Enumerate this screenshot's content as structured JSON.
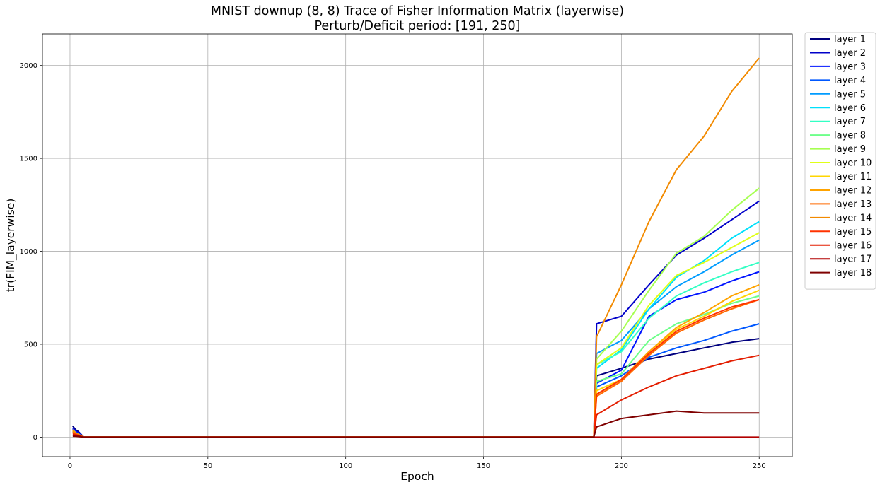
{
  "chart_data": {
    "type": "line",
    "title": "MNIST downup (8, 8) Trace of Fisher Information Matrix (layerwise)",
    "subtitle": "Perturb/Deficit period: [191, 250]",
    "xlabel": "Epoch",
    "ylabel": "tr(FIM_layerwise)",
    "xlim": [
      -10,
      262
    ],
    "ylim": [
      -105,
      2170
    ],
    "xticks": [
      0,
      50,
      100,
      150,
      200,
      250
    ],
    "yticks": [
      0,
      500,
      1000,
      1500,
      2000
    ],
    "grid": true,
    "legend_position": "outside-top-right",
    "colormap": "jet",
    "early_peaks": [
      {
        "epoch": 1,
        "values": [
          60,
          50,
          45,
          35,
          30,
          28,
          25,
          25,
          30,
          35,
          40,
          30,
          30,
          35,
          20,
          15,
          10,
          5
        ]
      },
      {
        "epoch": 2,
        "values": [
          40,
          35,
          30,
          25,
          22,
          20,
          18,
          18,
          20,
          22,
          24,
          20,
          20,
          22,
          15,
          12,
          8,
          4
        ]
      },
      {
        "epoch": 3,
        "values": [
          30,
          25,
          22,
          18,
          15,
          14,
          12,
          12,
          14,
          15,
          16,
          14,
          14,
          15,
          10,
          8,
          6,
          3
        ]
      }
    ],
    "series": [
      {
        "name": "layer 1",
        "color": "#00007f",
        "epochs": [
          190,
          191,
          200,
          210,
          220,
          230,
          240,
          250
        ],
        "values": [
          0,
          330,
          370,
          420,
          450,
          480,
          510,
          530
        ]
      },
      {
        "name": "layer 2",
        "color": "#0000c9",
        "epochs": [
          190,
          191,
          200,
          210,
          220,
          230,
          240,
          250
        ],
        "values": [
          0,
          610,
          650,
          820,
          980,
          1070,
          1170,
          1270
        ]
      },
      {
        "name": "layer 3",
        "color": "#0014ff",
        "epochs": [
          190,
          191,
          200,
          210,
          220,
          230,
          240,
          250
        ],
        "values": [
          0,
          290,
          360,
          650,
          740,
          780,
          840,
          890
        ]
      },
      {
        "name": "layer 4",
        "color": "#0058ff",
        "epochs": [
          190,
          191,
          200,
          210,
          220,
          230,
          240,
          250
        ],
        "values": [
          0,
          270,
          330,
          430,
          480,
          520,
          570,
          610
        ]
      },
      {
        "name": "layer 5",
        "color": "#009cff",
        "epochs": [
          190,
          191,
          200,
          210,
          220,
          230,
          240,
          250
        ],
        "values": [
          0,
          450,
          520,
          690,
          810,
          890,
          980,
          1060
        ]
      },
      {
        "name": "layer 6",
        "color": "#00e0fb",
        "epochs": [
          190,
          191,
          200,
          210,
          220,
          230,
          240,
          250
        ],
        "values": [
          0,
          370,
          470,
          690,
          860,
          950,
          1070,
          1160
        ]
      },
      {
        "name": "layer 7",
        "color": "#33ffc4",
        "epochs": [
          190,
          191,
          200,
          210,
          220,
          230,
          240,
          250
        ],
        "values": [
          0,
          390,
          460,
          640,
          760,
          830,
          890,
          940
        ]
      },
      {
        "name": "layer 8",
        "color": "#6dff8a",
        "epochs": [
          190,
          191,
          200,
          210,
          220,
          230,
          240,
          250
        ],
        "values": [
          0,
          300,
          340,
          520,
          610,
          660,
          720,
          760
        ]
      },
      {
        "name": "layer 9",
        "color": "#a6ff51",
        "epochs": [
          190,
          191,
          200,
          210,
          220,
          230,
          240,
          250
        ],
        "values": [
          0,
          420,
          570,
          790,
          990,
          1080,
          1220,
          1340
        ]
      },
      {
        "name": "layer 10",
        "color": "#e0ff17",
        "epochs": [
          190,
          191,
          200,
          210,
          220,
          230,
          240,
          250
        ],
        "values": [
          0,
          390,
          480,
          710,
          870,
          940,
          1020,
          1100
        ]
      },
      {
        "name": "layer 11",
        "color": "#ffd600",
        "epochs": [
          190,
          191,
          200,
          210,
          220,
          230,
          240,
          250
        ],
        "values": [
          0,
          250,
          310,
          460,
          580,
          650,
          730,
          790
        ]
      },
      {
        "name": "layer 12",
        "color": "#ffa300",
        "epochs": [
          190,
          191,
          200,
          210,
          220,
          230,
          240,
          250
        ],
        "values": [
          0,
          230,
          310,
          460,
          590,
          670,
          760,
          820
        ]
      },
      {
        "name": "layer 13",
        "color": "#ff6a00",
        "epochs": [
          190,
          191,
          200,
          210,
          220,
          230,
          240,
          250
        ],
        "values": [
          0,
          220,
          300,
          440,
          560,
          630,
          690,
          740
        ]
      },
      {
        "name": "layer 14",
        "color": "#f28a00",
        "epochs": [
          190,
          191,
          200,
          210,
          220,
          230,
          240,
          250
        ],
        "values": [
          0,
          540,
          820,
          1160,
          1440,
          1620,
          1860,
          2040
        ]
      },
      {
        "name": "layer 15",
        "color": "#ff3200",
        "epochs": [
          190,
          191,
          200,
          210,
          220,
          230,
          240,
          250
        ],
        "values": [
          0,
          230,
          310,
          450,
          570,
          640,
          700,
          740
        ]
      },
      {
        "name": "layer 16",
        "color": "#e31d00",
        "epochs": [
          190,
          191,
          200,
          210,
          220,
          230,
          240,
          250
        ],
        "values": [
          0,
          120,
          200,
          270,
          330,
          370,
          410,
          440
        ]
      },
      {
        "name": "layer 17",
        "color": "#b20000",
        "epochs": [
          190,
          250
        ],
        "values": [
          0,
          0
        ]
      },
      {
        "name": "layer 18",
        "color": "#7f0000",
        "epochs": [
          190,
          191,
          200,
          210,
          220,
          230,
          240,
          250
        ],
        "values": [
          0,
          55,
          100,
          120,
          140,
          130,
          130,
          130
        ]
      }
    ]
  }
}
